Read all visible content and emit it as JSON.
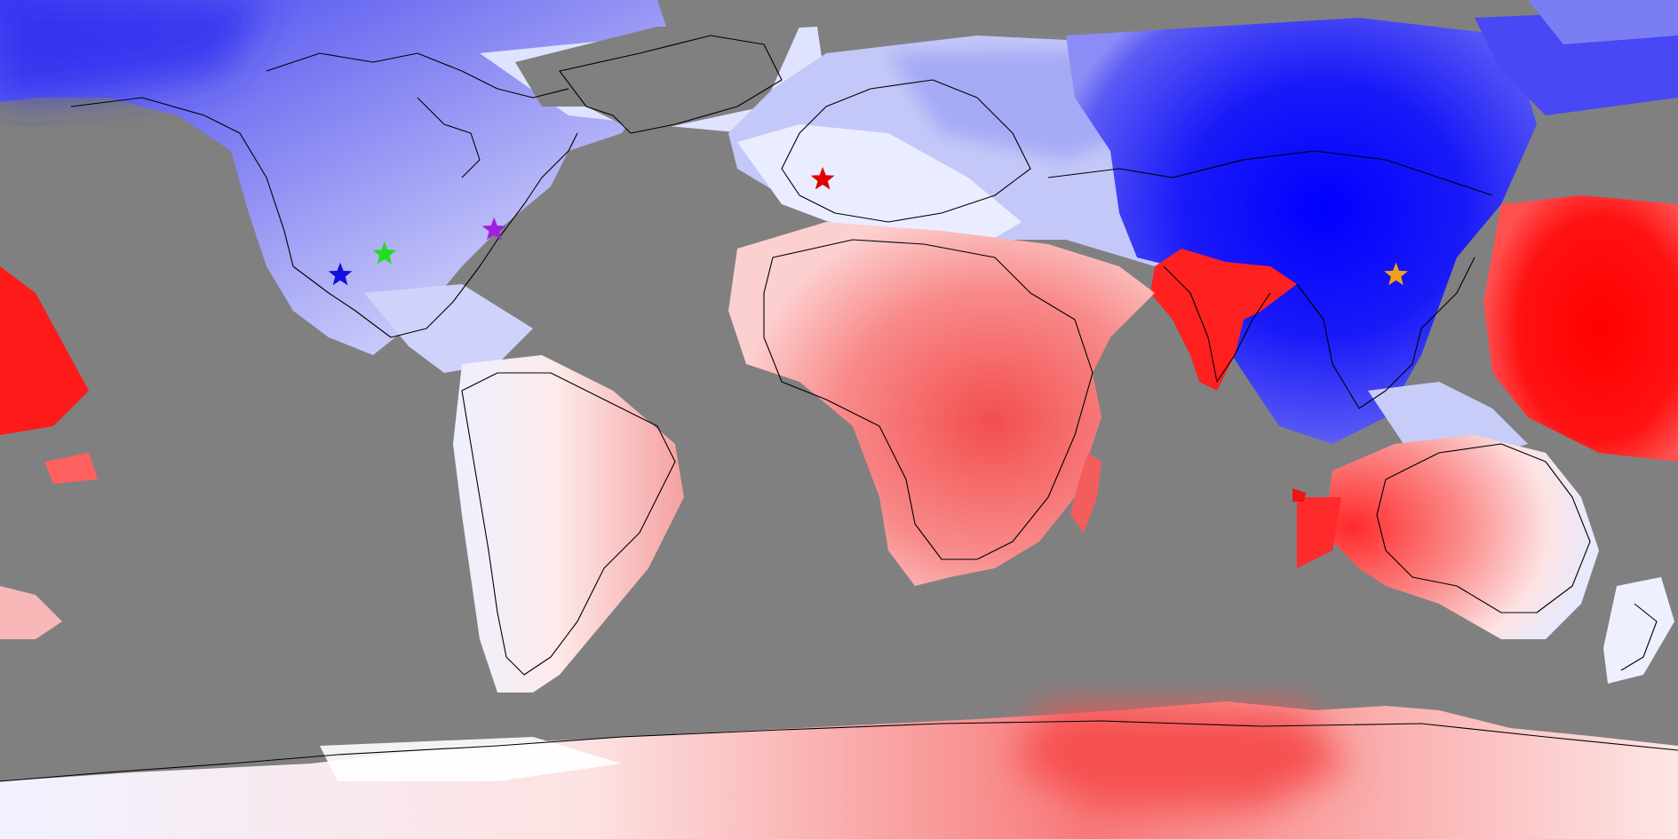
{
  "map": {
    "projection": "equirectangular",
    "ocean_mask_color": "#808080",
    "coastline_color": "#000000",
    "colormap": {
      "name": "bwr",
      "cold": "#0000ff",
      "neutral": "#ffffff",
      "warm": "#ff0000"
    }
  },
  "markers": [
    {
      "name": "star-blue",
      "color": "#1010e0",
      "lon": -107.0,
      "lat": 31.0
    },
    {
      "name": "star-green",
      "color": "#22dd22",
      "lon": -97.5,
      "lat": 35.5
    },
    {
      "name": "star-purple",
      "color": "#a020e0",
      "lon": -74.0,
      "lat": 40.7
    },
    {
      "name": "star-red",
      "color": "#e00000",
      "lon": -3.5,
      "lat": 51.5
    },
    {
      "name": "star-orange",
      "color": "#f0a020",
      "lon": 119.5,
      "lat": 31.0
    }
  ]
}
